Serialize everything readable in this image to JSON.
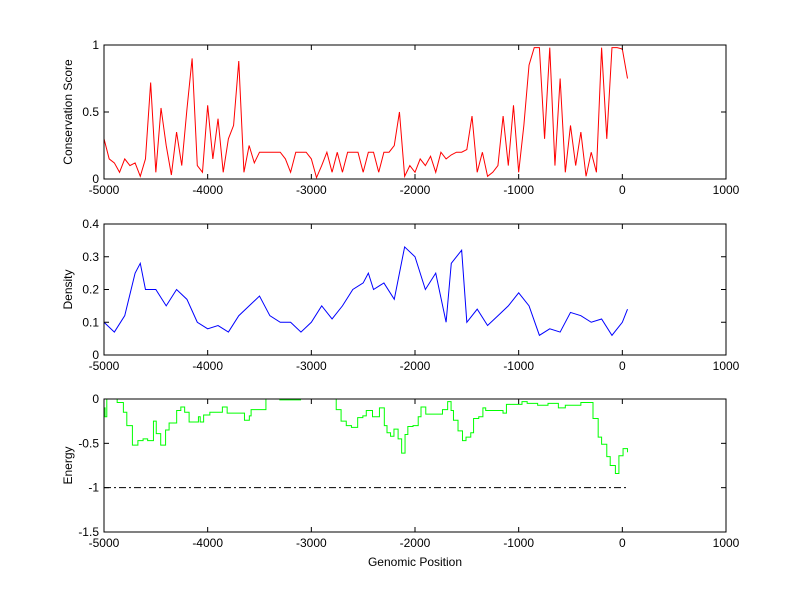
{
  "chart_data": [
    {
      "type": "line",
      "ylabel": "Conservation Score",
      "xlabel": "",
      "xlim": [
        -5000,
        1000
      ],
      "ylim": [
        0,
        1
      ],
      "xticks": [
        "-5000",
        "-4000",
        "-3000",
        "-2000",
        "-1000",
        "0",
        "1000"
      ],
      "yticks": [
        "0",
        "0.5",
        "1"
      ],
      "color": "#ff0000",
      "series": [
        {
          "name": "conservation",
          "x_start": -5000,
          "x_step": 50,
          "values": [
            0.3,
            0.15,
            0.12,
            0.05,
            0.15,
            0.1,
            0.12,
            0.02,
            0.15,
            0.72,
            0.05,
            0.53,
            0.25,
            0.03,
            0.35,
            0.1,
            0.52,
            0.9,
            0.1,
            0.05,
            0.55,
            0.15,
            0.45,
            0.05,
            0.3,
            0.4,
            0.88,
            0.05,
            0.25,
            0.12,
            0.2,
            0.2,
            0.2,
            0.2,
            0.2,
            0.15,
            0.05,
            0.2,
            0.2,
            0.2,
            0.15,
            0.01,
            0.1,
            0.2,
            0.05,
            0.2,
            0.05,
            0.2,
            0.2,
            0.2,
            0.05,
            0.2,
            0.2,
            0.05,
            0.2,
            0.2,
            0.25,
            0.5,
            0.02,
            0.1,
            0.05,
            0.15,
            0.1,
            0.17,
            0.05,
            0.2,
            0.15,
            0.18,
            0.2,
            0.2,
            0.22,
            0.47,
            0.05,
            0.2,
            0.02,
            0.05,
            0.1,
            0.47,
            0.1,
            0.55,
            0.05,
            0.4,
            0.85,
            0.98,
            0.98,
            0.3,
            0.98,
            0.1,
            0.75,
            0.05,
            0.4,
            0.1,
            0.35,
            0.02,
            0.2,
            0.05,
            0.98,
            0.3,
            0.98,
            0.98,
            0.97,
            0.75
          ]
        }
      ]
    },
    {
      "type": "line",
      "ylabel": "Density",
      "xlabel": "",
      "xlim": [
        -5000,
        1000
      ],
      "ylim": [
        0,
        0.4
      ],
      "xticks": [
        "-5000",
        "-4000",
        "-3000",
        "-2000",
        "-1000",
        "0",
        "1000"
      ],
      "yticks": [
        "0",
        "0.1",
        "0.2",
        "0.3",
        "0.4"
      ],
      "color": "#0000ff",
      "series": [
        {
          "name": "density",
          "x": [
            -5000,
            -4900,
            -4800,
            -4700,
            -4650,
            -4600,
            -4500,
            -4400,
            -4300,
            -4200,
            -4100,
            -4000,
            -3900,
            -3800,
            -3700,
            -3600,
            -3500,
            -3400,
            -3300,
            -3200,
            -3100,
            -3000,
            -2900,
            -2800,
            -2700,
            -2600,
            -2500,
            -2450,
            -2400,
            -2300,
            -2200,
            -2100,
            -2000,
            -1900,
            -1800,
            -1700,
            -1650,
            -1550,
            -1500,
            -1400,
            -1300,
            -1200,
            -1100,
            -1000,
            -900,
            -800,
            -700,
            -600,
            -500,
            -400,
            -300,
            -200,
            -100,
            0,
            50
          ],
          "y": [
            0.1,
            0.07,
            0.12,
            0.25,
            0.28,
            0.2,
            0.2,
            0.15,
            0.2,
            0.17,
            0.1,
            0.08,
            0.09,
            0.07,
            0.12,
            0.15,
            0.18,
            0.12,
            0.1,
            0.1,
            0.07,
            0.1,
            0.15,
            0.11,
            0.15,
            0.2,
            0.22,
            0.25,
            0.2,
            0.22,
            0.17,
            0.33,
            0.3,
            0.2,
            0.25,
            0.1,
            0.28,
            0.32,
            0.1,
            0.14,
            0.09,
            0.12,
            0.15,
            0.19,
            0.15,
            0.06,
            0.08,
            0.07,
            0.13,
            0.12,
            0.1,
            0.11,
            0.06,
            0.1,
            0.14
          ]
        }
      ]
    },
    {
      "type": "line",
      "ylabel": "Energy",
      "xlabel": "Genomic Position",
      "xlim": [
        -5000,
        1000
      ],
      "ylim": [
        -1.5,
        0
      ],
      "xticks": [
        "-5000",
        "-4000",
        "-3000",
        "-2000",
        "-1000",
        "0",
        "1000"
      ],
      "yticks": [
        "-1.5",
        "-1",
        "-0.5",
        "0"
      ],
      "color": "#00ff00",
      "series": [
        {
          "name": "energy",
          "step": true,
          "x": [
            -5000,
            -4990,
            -4973,
            -4873,
            -4813,
            -4780,
            -4726,
            -4673,
            -4623,
            -4579,
            -4523,
            -4496,
            -4453,
            -4406,
            -4372,
            -4299,
            -4259,
            -4222,
            -4179,
            -4089,
            -4072,
            -4039,
            -3979,
            -3858,
            -3812,
            -3645,
            -3598,
            -3581,
            -3438,
            -3304,
            -3104,
            -2760,
            -2713,
            -2663,
            -2613,
            -2553,
            -2503,
            -2470,
            -2410,
            -2343,
            -2296,
            -2270,
            -2236,
            -2203,
            -2163,
            -2129,
            -2096,
            -2069,
            -2019,
            -1969,
            -1942,
            -1896,
            -1836,
            -1735,
            -1685,
            -1652,
            -1629,
            -1585,
            -1542,
            -1508,
            -1462,
            -1435,
            -1385,
            -1345,
            -1318,
            -1208,
            -1151,
            -1118,
            -968,
            -918,
            -817,
            -717,
            -617,
            -550,
            -400,
            -283,
            -233,
            -200,
            -150,
            -117,
            -67,
            -33,
            7,
            50
          ],
          "y": [
            -0.1,
            -0.2,
            0,
            -0.04,
            -0.15,
            -0.3,
            -0.52,
            -0.47,
            -0.45,
            -0.47,
            -0.25,
            -0.39,
            -0.52,
            -0.35,
            -0.27,
            -0.13,
            -0.09,
            -0.15,
            -0.26,
            -0.2,
            -0.26,
            -0.18,
            -0.15,
            -0.09,
            -0.16,
            -0.24,
            -0.19,
            -0.12,
            0,
            -0.01,
            0,
            -0.12,
            -0.25,
            -0.3,
            -0.32,
            -0.21,
            -0.19,
            -0.13,
            -0.2,
            -0.1,
            -0.3,
            -0.38,
            -0.42,
            -0.34,
            -0.45,
            -0.61,
            -0.4,
            -0.31,
            -0.3,
            -0.2,
            -0.09,
            -0.17,
            -0.17,
            -0.12,
            -0.03,
            -0.13,
            -0.24,
            -0.36,
            -0.47,
            -0.43,
            -0.38,
            -0.22,
            -0.2,
            -0.1,
            -0.13,
            -0.13,
            -0.16,
            -0.06,
            -0.03,
            -0.05,
            -0.07,
            -0.05,
            -0.1,
            -0.07,
            -0.04,
            -0.22,
            -0.43,
            -0.51,
            -0.65,
            -0.75,
            -0.84,
            -0.64,
            -0.56,
            -0.6
          ]
        },
        {
          "name": "threshold",
          "style": "dash-dot",
          "color": "#000000",
          "x": [
            -5000,
            50
          ],
          "y": [
            -1,
            -1
          ]
        }
      ]
    }
  ]
}
